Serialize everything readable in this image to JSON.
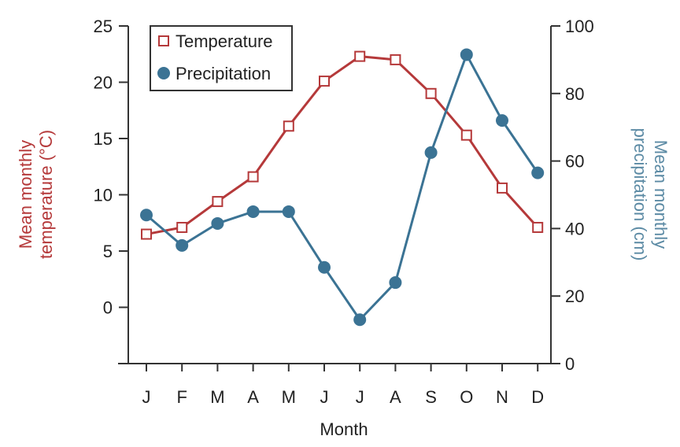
{
  "chart_data": {
    "type": "line",
    "categories": [
      "J",
      "F",
      "M",
      "A",
      "M",
      "J",
      "J",
      "A",
      "S",
      "O",
      "N",
      "D"
    ],
    "series": [
      {
        "name": "Temperature",
        "axis": "left",
        "marker": "open-square",
        "color": "#b5393a",
        "values": [
          6.5,
          7.1,
          9.4,
          11.6,
          16.1,
          20.1,
          22.3,
          22.0,
          19.0,
          15.3,
          10.6,
          7.1
        ]
      },
      {
        "name": "Precipitation",
        "axis": "right",
        "marker": "filled-circle",
        "color": "#3b7394",
        "values": [
          44,
          35,
          41.5,
          45,
          45,
          28.5,
          13,
          24,
          62.5,
          91.5,
          72,
          56.5
        ]
      }
    ],
    "xlabel": "Month",
    "ylabel_left": [
      "Mean monthly",
      "temperature (°C)"
    ],
    "ylabel_right": [
      "Mean monthly",
      "precipitation (cm)"
    ],
    "ylim_left": [
      -5,
      25
    ],
    "ylim_right": [
      0,
      100
    ],
    "yticks_left": [
      25,
      20,
      15,
      10,
      5,
      0
    ],
    "yticks_right": [
      100,
      80,
      60,
      40,
      20,
      0
    ],
    "legend": {
      "position": "top-left",
      "entries": [
        "Temperature",
        "Precipitation"
      ]
    },
    "grid": false
  },
  "colors": {
    "temperature": "#b5393a",
    "precipitation": "#3b7394",
    "temperature_label": "#b5393a",
    "precipitation_label": "#5b8aa4",
    "axis": "#333333"
  }
}
